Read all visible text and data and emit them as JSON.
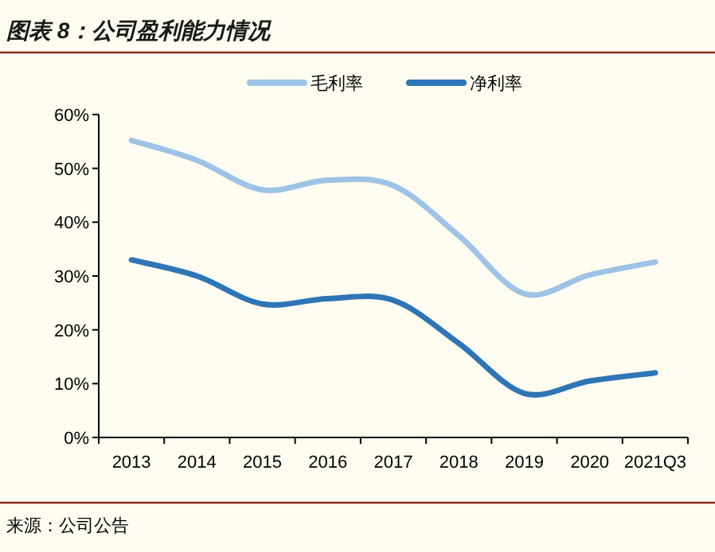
{
  "chart_data": {
    "type": "line",
    "title": "图表 8：公司盈利能力情况",
    "categories": [
      "2013",
      "2014",
      "2015",
      "2016",
      "2017",
      "2018",
      "2019",
      "2020",
      "2021Q3"
    ],
    "series": [
      {
        "name": "毛利率",
        "color": "#9dc3e6",
        "values": [
          55.2,
          51.5,
          46,
          47.8,
          46.8,
          37.5,
          26.7,
          30.2,
          32.6
        ]
      },
      {
        "name": "净利率",
        "color": "#2e75b6",
        "values": [
          33,
          30,
          24.8,
          25.8,
          25.5,
          17.5,
          8.2,
          10.5,
          12
        ]
      }
    ],
    "ylim": [
      0,
      60
    ],
    "yticks": [
      {
        "value": 0,
        "label": "0%"
      },
      {
        "value": 10,
        "label": "10%"
      },
      {
        "value": 20,
        "label": "20%"
      },
      {
        "value": 30,
        "label": "30%"
      },
      {
        "value": 40,
        "label": "40%"
      },
      {
        "value": 50,
        "label": "50%"
      },
      {
        "value": 60,
        "label": "60%"
      }
    ],
    "legend": "top",
    "grid": false,
    "line_style": "solid",
    "marker": "none",
    "annotations": [
      "来源：公司公告"
    ]
  }
}
